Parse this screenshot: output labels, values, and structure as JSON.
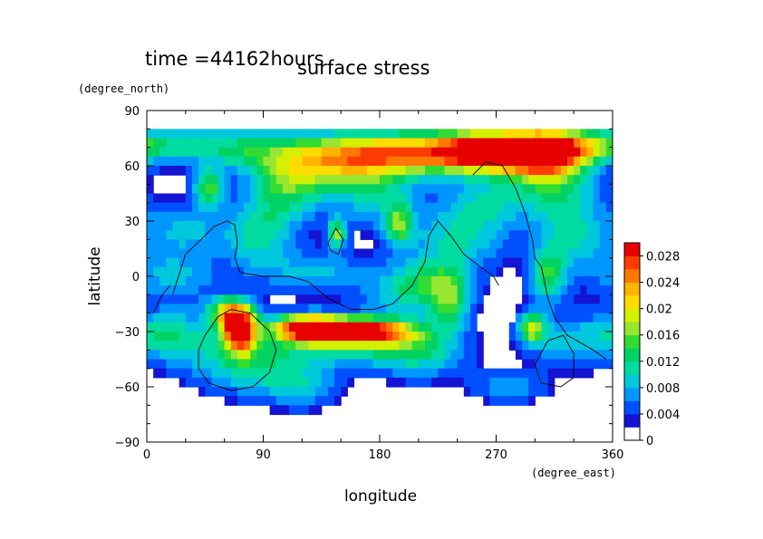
{
  "header": {
    "time_label": "time =44162hours",
    "title": "surface stress"
  },
  "colors": {
    "scale": [
      "#ffffff",
      "#1414d2",
      "#0050ff",
      "#0096ff",
      "#00c8dc",
      "#00dca0",
      "#00d264",
      "#32dc32",
      "#96e632",
      "#d2f000",
      "#ffdc00",
      "#ffb400",
      "#ff7800",
      "#ff3c00",
      "#e60000"
    ],
    "coastline": "#000000"
  },
  "chart_data": {
    "type": "heatmap",
    "title": "surface stress",
    "xlabel": "longitude",
    "ylabel": "latitude",
    "x_units": "(degree_east)",
    "y_units": "(degree_north)",
    "xlim": [
      0,
      360
    ],
    "ylim": [
      -90,
      90
    ],
    "xticks": [
      0,
      90,
      180,
      270,
      360
    ],
    "xtick_labels": [
      "0",
      "90",
      "180",
      "270",
      "360"
    ],
    "yticks": [
      90,
      60,
      30,
      0,
      -30,
      -60,
      -90
    ],
    "ytick_labels": [
      "90",
      "60",
      "30",
      "0",
      "−30",
      "−60",
      "−90"
    ],
    "colorbar": {
      "min": 0,
      "max": 0.03,
      "ticks": [
        0,
        0.004,
        0.008,
        0.012,
        0.016,
        0.02,
        0.024,
        0.028
      ],
      "tick_labels": [
        "0",
        "0.004",
        "0.008",
        "0.012",
        "0.016",
        "0.02",
        "0.024",
        "0.028"
      ]
    },
    "features": [
      {
        "lon": 270,
        "lat": 68,
        "value": 0.03,
        "sx": 32,
        "sy": 8
      },
      {
        "lon": 200,
        "lat": 67,
        "value": 0.02,
        "sx": 45,
        "sy": 8
      },
      {
        "lon": 140,
        "lat": 62,
        "value": 0.014,
        "sx": 35,
        "sy": 10
      },
      {
        "lon": 310,
        "lat": 66,
        "value": 0.022,
        "sx": 20,
        "sy": 10
      },
      {
        "lon": 340,
        "lat": 70,
        "value": 0.01,
        "sx": 20,
        "sy": 6
      },
      {
        "lon": 20,
        "lat": 72,
        "value": 0.008,
        "sx": 35,
        "sy": 7
      },
      {
        "lon": 80,
        "lat": 68,
        "value": 0.008,
        "sx": 30,
        "sy": 8
      },
      {
        "lon": 48,
        "lat": 48,
        "value": 0.014,
        "sx": 8,
        "sy": 7
      },
      {
        "lon": 110,
        "lat": 50,
        "value": 0.009,
        "sx": 20,
        "sy": 9
      },
      {
        "lon": 175,
        "lat": 45,
        "value": 0.008,
        "sx": 25,
        "sy": 12
      },
      {
        "lon": 315,
        "lat": 45,
        "value": 0.009,
        "sx": 25,
        "sy": 12
      },
      {
        "lon": 30,
        "lat": 25,
        "value": 0.007,
        "sx": 22,
        "sy": 10
      },
      {
        "lon": 85,
        "lat": 20,
        "value": 0.008,
        "sx": 18,
        "sy": 12
      },
      {
        "lon": 147,
        "lat": 23,
        "value": 0.014,
        "sx": 5,
        "sy": 6
      },
      {
        "lon": 195,
        "lat": 28,
        "value": 0.013,
        "sx": 8,
        "sy": 8
      },
      {
        "lon": 240,
        "lat": 20,
        "value": 0.009,
        "sx": 25,
        "sy": 12
      },
      {
        "lon": 330,
        "lat": 20,
        "value": 0.008,
        "sx": 20,
        "sy": 12
      },
      {
        "lon": 20,
        "lat": 0,
        "value": 0.007,
        "sx": 25,
        "sy": 9
      },
      {
        "lon": 130,
        "lat": 2,
        "value": 0.007,
        "sx": 30,
        "sy": 8
      },
      {
        "lon": 220,
        "lat": -2,
        "value": 0.008,
        "sx": 20,
        "sy": 9
      },
      {
        "lon": 310,
        "lat": 0,
        "value": 0.012,
        "sx": 10,
        "sy": 10
      },
      {
        "lon": 72,
        "lat": -30,
        "value": 0.03,
        "sx": 9,
        "sy": 8
      },
      {
        "lon": 65,
        "lat": -20,
        "value": 0.018,
        "sx": 12,
        "sy": 6
      },
      {
        "lon": 125,
        "lat": -28,
        "value": 0.03,
        "sx": 20,
        "sy": 5
      },
      {
        "lon": 170,
        "lat": -30,
        "value": 0.026,
        "sx": 25,
        "sy": 5
      },
      {
        "lon": 140,
        "lat": -38,
        "value": 0.01,
        "sx": 40,
        "sy": 8
      },
      {
        "lon": 80,
        "lat": -50,
        "value": 0.009,
        "sx": 25,
        "sy": 10
      },
      {
        "lon": 120,
        "lat": -60,
        "value": 0.007,
        "sx": 20,
        "sy": 8
      },
      {
        "lon": 210,
        "lat": -40,
        "value": 0.01,
        "sx": 25,
        "sy": 10
      },
      {
        "lon": 235,
        "lat": -15,
        "value": 0.011,
        "sx": 10,
        "sy": 10
      },
      {
        "lon": 298,
        "lat": -28,
        "value": 0.016,
        "sx": 7,
        "sy": 6
      },
      {
        "lon": 330,
        "lat": -35,
        "value": 0.008,
        "sx": 25,
        "sy": 10
      },
      {
        "lon": 35,
        "lat": -35,
        "value": 0.007,
        "sx": 20,
        "sy": 12
      },
      {
        "lon": 10,
        "lat": -30,
        "value": 0.006,
        "sx": 15,
        "sy": 8
      },
      {
        "lon": 200,
        "lat": -10,
        "value": 0.007,
        "sx": 25,
        "sy": 10
      },
      {
        "lon": 100,
        "lat": 35,
        "value": 0.006,
        "sx": 20,
        "sy": 10
      },
      {
        "lon": 260,
        "lat": 40,
        "value": 0.007,
        "sx": 20,
        "sy": 10
      },
      {
        "lon": 280,
        "lat": -60,
        "value": 0.006,
        "sx": 20,
        "sy": 6
      }
    ]
  }
}
